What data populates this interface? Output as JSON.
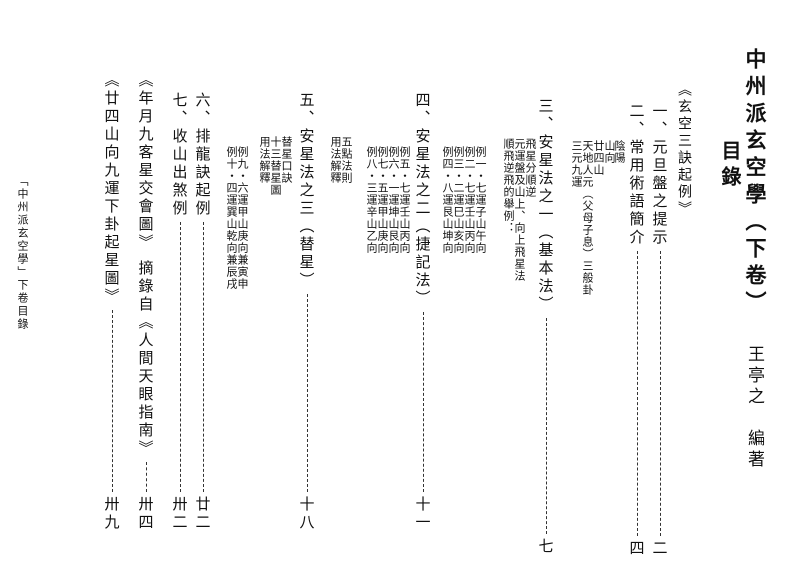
{
  "title": "中州派玄空學（下卷）",
  "heading": "目錄",
  "author": "王亭之　編著",
  "section_head": "《玄空三訣起例》",
  "entries": [
    {
      "label": "一、元旦盤之提示",
      "page": "二"
    },
    {
      "label": "二、常用術語簡介",
      "page": "四"
    },
    {
      "label": "三、安星法之一（基本法）",
      "page": "七"
    },
    {
      "label": "四、安星法之二（捷記法）",
      "page": "十一"
    },
    {
      "label": "五、安星法之三（替星）",
      "page": "十八"
    },
    {
      "label": "六、排龍訣起例",
      "page": "廿二"
    },
    {
      "label": "七、收山出煞例",
      "page": "卅二"
    },
    {
      "label": "《年月九客星交會圖》 摘錄自《人間天眼指南》",
      "page": "卅四"
    },
    {
      "label": "《廿四山向九運下卦起星圖》",
      "page": "卅九"
    }
  ],
  "sub_items": {
    "s2": [
      "陰陽",
      "山向",
      "廿四山",
      "天地人元（父母子息）三般卦",
      "三元九運"
    ],
    "s3": [
      "飛星分順逆",
      "元運盤及山上、向上飛星法",
      "順飛逆飛的舉例："
    ],
    "s3_examples": [
      "例一・七運子山午向",
      "例二・七運壬山丙向",
      "例三・二運巳山亥向",
      "例四・八運艮山坤向"
    ],
    "s4": [
      "例五・七運壬山丙向",
      "例六・一運坤山艮向",
      "例七・五運甲山庚向",
      "例八・三運辛山乙向"
    ],
    "s4b": [
      "五點法則",
      "用法解釋"
    ],
    "s5": [
      "替星口訣",
      "十三替星圖",
      "用法解釋"
    ],
    "s5_examples": [
      "例九・六運甲山庚向兼寅申",
      "例十・四運巽山乾向兼辰戌"
    ]
  },
  "footer": "「中州派玄空學」下卷目錄"
}
